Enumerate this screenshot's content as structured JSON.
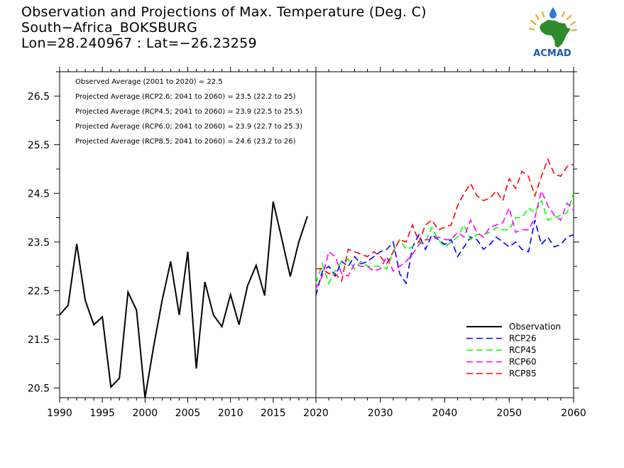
{
  "title": {
    "line1": "Observation and Projections of Max. Temperature (Deg. C)",
    "line2": "South−Africa_BOKSBURG",
    "line3": "Lon=28.240967 : Lat=−26.23259"
  },
  "logo": {
    "text": "ACMAD",
    "icon": "africa-map-logo"
  },
  "stats": [
    "Observed Average (2001 to 2020) = 22.5",
    "Projected Average (RCP2.6; 2041 to 2060) = 23.5 (22.2 to 25)",
    "Projected Average (RCP4.5; 2041 to 2060) = 23.9 (22.5 to 25.5)",
    "Projected Average (RCP6.0; 2041 to 2060) = 23.9 (22.7 to 25.3)",
    "Projected Average (RCP8.5; 2041 to 2060) = 24.6 (23.2 to 26)"
  ],
  "chart_data": {
    "type": "line",
    "title": "Observation and Projections of Max. Temperature (Deg. C)",
    "xlabel": "",
    "ylabel": "",
    "grid": false,
    "legend_position": "bottom-right",
    "obs_xlim": [
      1990,
      2020
    ],
    "proj_xlim": [
      2020,
      2060
    ],
    "ylim": [
      20.3,
      27.0
    ],
    "obs_xticks": [
      1990,
      1995,
      2000,
      2005,
      2010,
      2015,
      2020
    ],
    "proj_xticks": [
      2030,
      2040,
      2050,
      2060
    ],
    "yticks": [
      20.5,
      21.5,
      22.5,
      23.5,
      24.5,
      25.5,
      26.5
    ],
    "series": [
      {
        "name": "Observation",
        "color": "#000000",
        "dash": "solid",
        "x": [
          1990,
          1991,
          1992,
          1993,
          1994,
          1995,
          1996,
          1997,
          1998,
          1999,
          2000,
          2001,
          2002,
          2003,
          2004,
          2005,
          2006,
          2007,
          2008,
          2009,
          2010,
          2011,
          2012,
          2013,
          2014,
          2015,
          2016,
          2017,
          2018,
          2019,
          2020
        ],
        "values": [
          22.0,
          22.2,
          23.46,
          22.3,
          21.8,
          21.96,
          20.52,
          20.7,
          22.47,
          22.1,
          20.2,
          21.35,
          22.3,
          23.1,
          22.0,
          23.3,
          20.9,
          22.68,
          22.0,
          21.76,
          22.42,
          21.8,
          22.6,
          23.02,
          22.4,
          24.33,
          23.57,
          22.79,
          23.5,
          24.03,
          null
        ]
      },
      {
        "name": "RCP26",
        "color": "#0000ff",
        "dash": "dashed",
        "x": [
          2020,
          2021,
          2022,
          2023,
          2024,
          2025,
          2026,
          2027,
          2028,
          2029,
          2030,
          2031,
          2032,
          2033,
          2034,
          2035,
          2036,
          2037,
          2038,
          2039,
          2040,
          2041,
          2042,
          2043,
          2044,
          2045,
          2046,
          2047,
          2048,
          2049,
          2050,
          2051,
          2052,
          2053,
          2054,
          2055,
          2056,
          2057,
          2058,
          2059,
          2060
        ],
        "values": [
          22.4,
          22.9,
          23.0,
          22.8,
          23.1,
          23.0,
          23.2,
          23.05,
          23.1,
          23.2,
          23.3,
          23.35,
          23.5,
          22.85,
          22.65,
          23.4,
          23.65,
          23.35,
          23.65,
          23.55,
          23.45,
          23.55,
          23.2,
          23.4,
          23.6,
          23.55,
          23.35,
          23.45,
          23.6,
          23.5,
          23.4,
          23.5,
          23.35,
          23.3,
          23.95,
          23.45,
          23.6,
          23.4,
          23.45,
          23.6,
          23.65
        ]
      },
      {
        "name": "RCP45",
        "color": "#00ff00",
        "dash": "dashed",
        "x": [
          2020,
          2021,
          2022,
          2023,
          2024,
          2025,
          2026,
          2027,
          2028,
          2029,
          2030,
          2031,
          2032,
          2033,
          2034,
          2035,
          2036,
          2037,
          2038,
          2039,
          2040,
          2041,
          2042,
          2043,
          2044,
          2045,
          2046,
          2047,
          2048,
          2049,
          2050,
          2051,
          2052,
          2053,
          2054,
          2055,
          2056,
          2057,
          2058,
          2059,
          2060
        ],
        "values": [
          22.65,
          23.05,
          22.65,
          22.9,
          23.1,
          23.15,
          22.95,
          23.1,
          23.0,
          23.0,
          23.0,
          22.95,
          23.3,
          23.55,
          23.35,
          23.4,
          23.5,
          23.5,
          23.8,
          23.55,
          23.4,
          23.5,
          23.6,
          23.85,
          23.55,
          23.65,
          23.65,
          23.7,
          23.8,
          23.75,
          23.75,
          24.0,
          24.0,
          24.2,
          24.1,
          24.35,
          23.95,
          24.0,
          24.05,
          24.1,
          24.5
        ]
      },
      {
        "name": "RCP60",
        "color": "#ff00ff",
        "dash": "dashed",
        "x": [
          2020,
          2021,
          2022,
          2023,
          2024,
          2025,
          2026,
          2027,
          2028,
          2029,
          2030,
          2031,
          2032,
          2033,
          2034,
          2035,
          2036,
          2037,
          2038,
          2039,
          2040,
          2041,
          2042,
          2043,
          2044,
          2045,
          2046,
          2047,
          2048,
          2049,
          2050,
          2051,
          2052,
          2053,
          2054,
          2055,
          2056,
          2057,
          2058,
          2059,
          2060
        ],
        "values": [
          22.55,
          22.8,
          23.3,
          23.2,
          22.85,
          22.8,
          23.05,
          23.0,
          23.0,
          22.9,
          22.95,
          23.2,
          22.9,
          23.0,
          23.1,
          23.25,
          23.45,
          23.55,
          23.55,
          23.6,
          23.55,
          23.55,
          23.7,
          23.6,
          23.95,
          23.7,
          23.6,
          23.8,
          23.85,
          23.9,
          24.2,
          23.7,
          23.75,
          23.75,
          24.0,
          24.55,
          24.25,
          24.05,
          23.95,
          24.3,
          24.15
        ]
      },
      {
        "name": "RCP85",
        "color": "#ff0000",
        "dash": "dashed",
        "x": [
          2020,
          2021,
          2022,
          2023,
          2024,
          2025,
          2026,
          2027,
          2028,
          2029,
          2030,
          2031,
          2032,
          2033,
          2034,
          2035,
          2036,
          2037,
          2038,
          2039,
          2040,
          2041,
          2042,
          2043,
          2044,
          2045,
          2046,
          2047,
          2048,
          2049,
          2050,
          2051,
          2052,
          2053,
          2054,
          2055,
          2056,
          2057,
          2058,
          2059,
          2060
        ],
        "values": [
          22.95,
          22.95,
          22.85,
          22.85,
          22.7,
          23.35,
          23.3,
          23.25,
          23.2,
          23.3,
          23.2,
          23.05,
          23.3,
          23.55,
          23.5,
          23.85,
          23.5,
          23.85,
          23.95,
          23.75,
          23.8,
          23.85,
          24.25,
          24.5,
          24.7,
          24.45,
          24.35,
          24.4,
          24.55,
          24.35,
          24.8,
          24.6,
          24.95,
          24.85,
          24.45,
          24.85,
          25.2,
          24.9,
          24.85,
          25.05,
          25.1
        ]
      }
    ]
  }
}
